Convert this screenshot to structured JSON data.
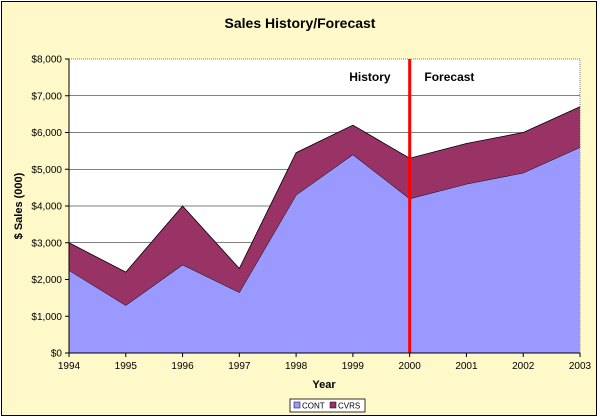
{
  "chart_data": {
    "type": "area",
    "title": "Sales History/Forecast",
    "xlabel": "Year",
    "ylabel": "$ Sales (000)",
    "x": [
      1994,
      1995,
      1996,
      1997,
      1998,
      1999,
      2000,
      2001,
      2002,
      2003
    ],
    "x_tick_labels": [
      "1994",
      "1995",
      "1996",
      "1997",
      "1998",
      "1999",
      "2000",
      "2001",
      "2002",
      "2003"
    ],
    "ylim": [
      0,
      8000
    ],
    "y_tick_labels": [
      "$0",
      "$1,000",
      "$2,000",
      "$3,000",
      "$4,000",
      "$5,000",
      "$6,000",
      "$7,000",
      "$8,000"
    ],
    "y_ticks": [
      0,
      1000,
      2000,
      3000,
      4000,
      5000,
      6000,
      7000,
      8000
    ],
    "stacked": true,
    "series": [
      {
        "name": "CONT",
        "color": "#9999ff",
        "values": [
          2250,
          1300,
          2400,
          1650,
          4300,
          5400,
          4200,
          4600,
          4900,
          5600
        ]
      },
      {
        "name": "CVRS",
        "color": "#993366",
        "values": [
          750,
          900,
          1600,
          650,
          1150,
          800,
          1100,
          1100,
          1100,
          1100
        ]
      }
    ],
    "divider": {
      "x": 2000,
      "color": "#ff0000"
    },
    "annotations": [
      {
        "text": "History",
        "x": 1999.3,
        "y": 7400
      },
      {
        "text": "Forecast",
        "x": 2000.7,
        "y": 7400
      }
    ],
    "grid": true,
    "legend": "bottom-center",
    "colors": {
      "background": "#fff8c8",
      "plot_area": "#ffffff",
      "gridline": "#000000"
    }
  }
}
